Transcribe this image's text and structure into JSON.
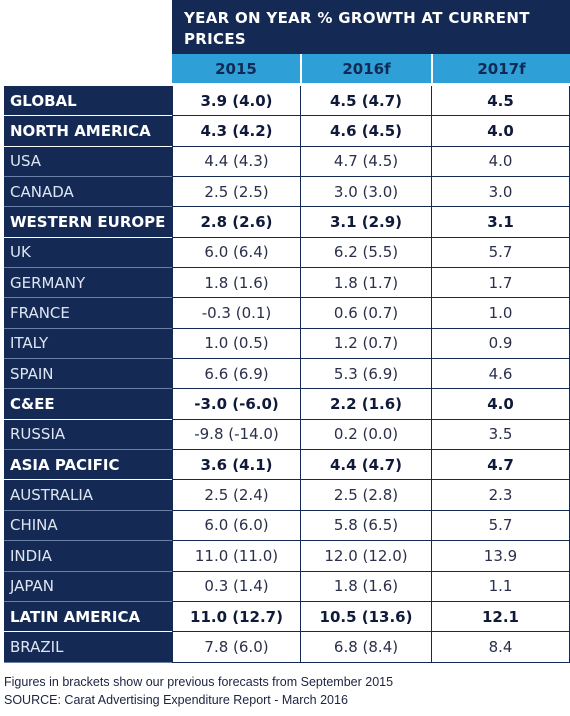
{
  "header": {
    "title": "YEAR ON YEAR % GROWTH AT CURRENT PRICES",
    "years": [
      "2015",
      "2016f",
      "2017f"
    ]
  },
  "rows": [
    {
      "label": "GLOBAL",
      "y2015": "3.9 (4.0)",
      "y2016": "4.5 (4.7)",
      "y2017": "4.5",
      "type": "region"
    },
    {
      "label": "NORTH AMERICA",
      "y2015": "4.3 (4.2)",
      "y2016": "4.6 (4.5)",
      "y2017": "4.0",
      "type": "region"
    },
    {
      "label": "USA",
      "y2015": "4.4 (4.3)",
      "y2016": "4.7 (4.5)",
      "y2017": "4.0",
      "type": "country"
    },
    {
      "label": "CANADA",
      "y2015": "2.5 (2.5)",
      "y2016": "3.0 (3.0)",
      "y2017": "3.0",
      "type": "country"
    },
    {
      "label": "WESTERN EUROPE",
      "y2015": "2.8 (2.6)",
      "y2016": "3.1 (2.9)",
      "y2017": "3.1",
      "type": "region"
    },
    {
      "label": "UK",
      "y2015": "6.0 (6.4)",
      "y2016": "6.2 (5.5)",
      "y2017": "5.7",
      "type": "country"
    },
    {
      "label": "GERMANY",
      "y2015": "1.8 (1.6)",
      "y2016": "1.8 (1.7)",
      "y2017": "1.7",
      "type": "country"
    },
    {
      "label": "FRANCE",
      "y2015": "-0.3 (0.1)",
      "y2016": "0.6 (0.7)",
      "y2017": "1.0",
      "type": "country"
    },
    {
      "label": "ITALY",
      "y2015": "1.0 (0.5)",
      "y2016": "1.2 (0.7)",
      "y2017": "0.9",
      "type": "country"
    },
    {
      "label": "SPAIN",
      "y2015": "6.6 (6.9)",
      "y2016": "5.3 (6.9)",
      "y2017": "4.6",
      "type": "country"
    },
    {
      "label": "C&EE",
      "y2015": "-3.0 (-6.0)",
      "y2016": "2.2 (1.6)",
      "y2017": "4.0",
      "type": "region"
    },
    {
      "label": "RUSSIA",
      "y2015": "-9.8 (-14.0)",
      "y2016": "0.2 (0.0)",
      "y2017": "3.5",
      "type": "country"
    },
    {
      "label": "ASIA PACIFIC",
      "y2015": "3.6 (4.1)",
      "y2016": "4.4 (4.7)",
      "y2017": "4.7",
      "type": "region"
    },
    {
      "label": "AUSTRALIA",
      "y2015": "2.5 (2.4)",
      "y2016": "2.5 (2.8)",
      "y2017": "2.3",
      "type": "country"
    },
    {
      "label": "CHINA",
      "y2015": "6.0 (6.0)",
      "y2016": "5.8 (6.5)",
      "y2017": "5.7",
      "type": "country"
    },
    {
      "label": "INDIA",
      "y2015": "11.0 (11.0)",
      "y2016": "12.0 (12.0)",
      "y2017": "13.9",
      "type": "country"
    },
    {
      "label": "JAPAN",
      "y2015": "0.3 (1.4)",
      "y2016": "1.8 (1.6)",
      "y2017": "1.1",
      "type": "country"
    },
    {
      "label": "LATIN AMERICA",
      "y2015": "11.0 (12.7)",
      "y2016": "10.5 (13.6)",
      "y2017": "12.1",
      "type": "region"
    },
    {
      "label": "BRAZIL",
      "y2015": "7.8 (6.0)",
      "y2016": "6.8 (8.4)",
      "y2017": "8.4",
      "type": "country"
    }
  ],
  "footer": {
    "note": "Figures in brackets show our previous forecasts from September 2015",
    "source": "SOURCE: Carat Advertising Expenditure Report - March 2016"
  },
  "colors": {
    "navy": "#142a55",
    "blue": "#2f9fd8"
  }
}
